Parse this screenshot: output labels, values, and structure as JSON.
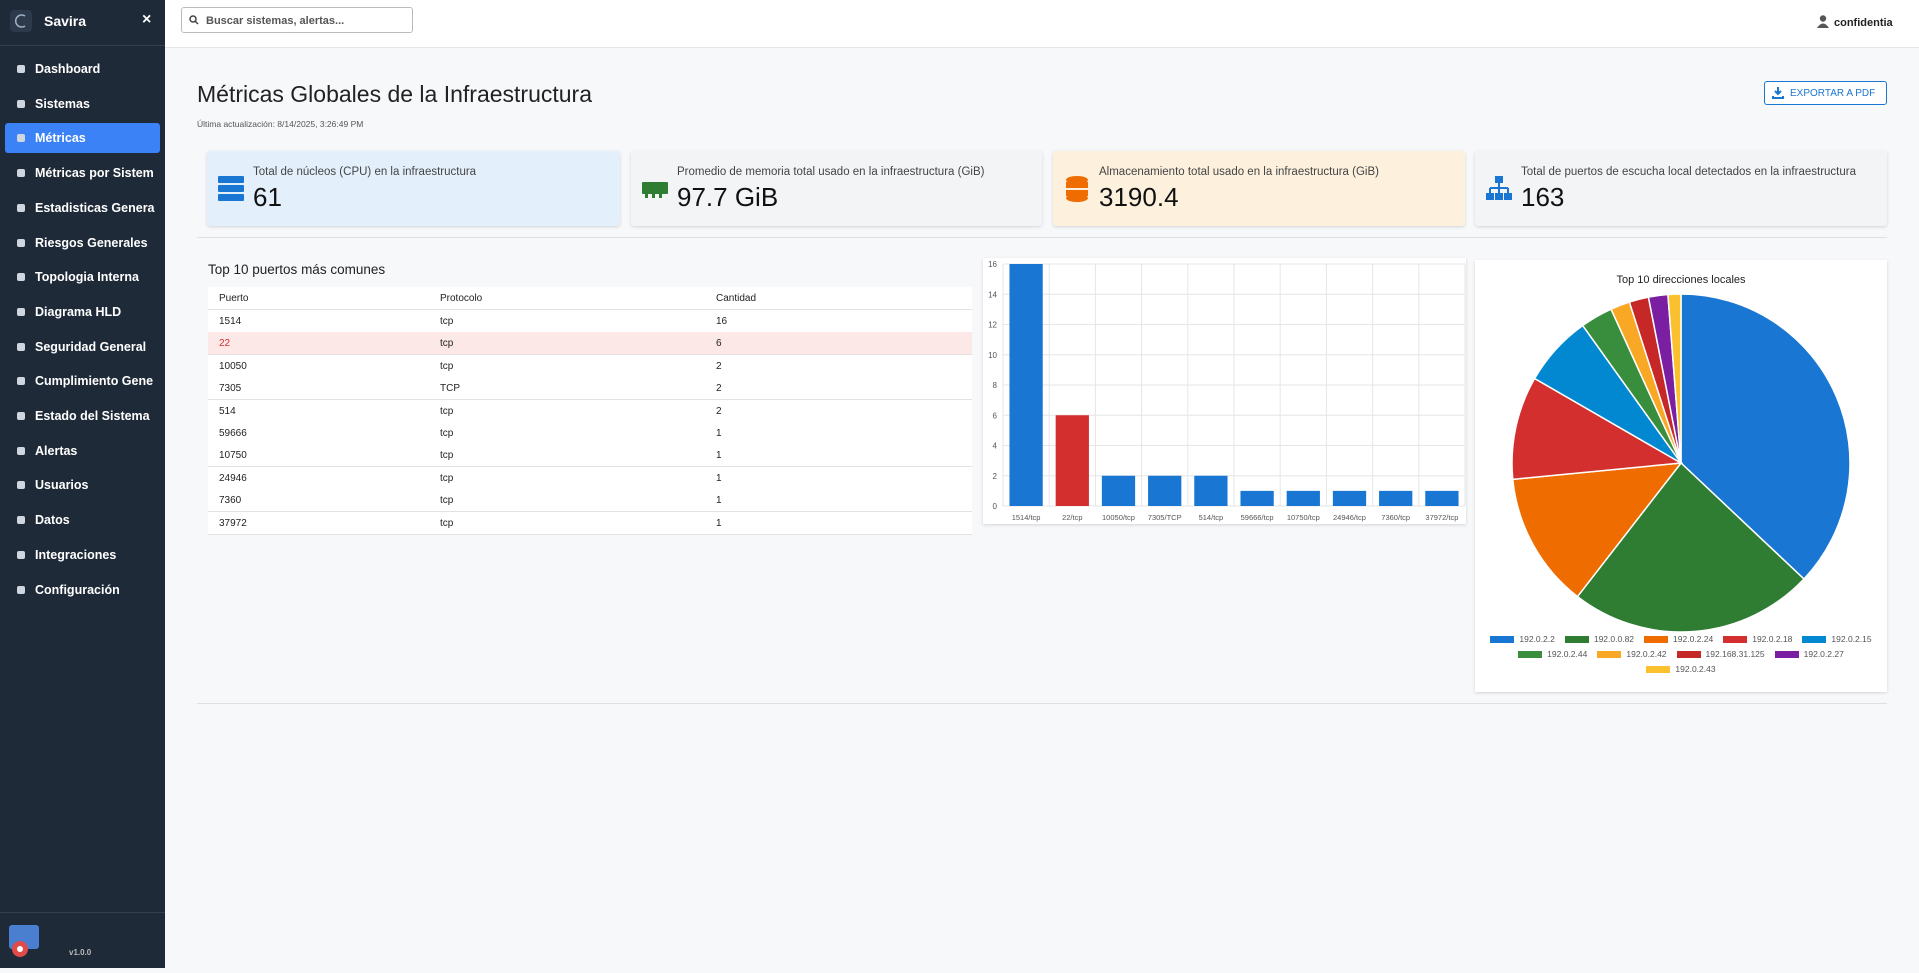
{
  "sidebar": {
    "brand": "Savira",
    "close": "×",
    "menu": [
      "Dashboard",
      "Sistemas",
      "Métricas",
      "Métricas por Sistem",
      "Estadisticas Genera",
      "Riesgos Generales",
      "Topologia Interna",
      "Diagrama HLD",
      "Seguridad General",
      "Cumplimiento Gene",
      "Estado del Sistema",
      "Alertas",
      "Usuarios",
      "Datos",
      "Integraciones",
      "Configuración"
    ],
    "active": 2,
    "version": "v1.0.0"
  },
  "header": {
    "search_placeholder": "Buscar sistemas, alertas...",
    "user": "confidentia"
  },
  "page": {
    "title": "Métricas Globales de la Infraestructura",
    "updated": "Última actualización: 8/14/2025, 3:26:49 PM",
    "export": "EXPORTAR A PDF"
  },
  "cards": [
    {
      "label": "Total de núcleos (CPU) en la infraestructura",
      "value": "61"
    },
    {
      "label": "Promedio de memoria total usado en la infraestructura (GiB)",
      "value": "97.7 GiB"
    },
    {
      "label": "Almacenamiento total usado en la infraestructura (GiB)",
      "value": "3190.4"
    },
    {
      "label": "Total de puertos de escucha local detectados en la infraestructura",
      "value": "163"
    }
  ],
  "table": {
    "title": "Top 10 puertos más comunes",
    "columns": [
      "Puerto",
      "Protocolo",
      "Cantidad"
    ],
    "rows": [
      [
        "1514",
        "tcp",
        16
      ],
      [
        "22",
        "tcp",
        6
      ],
      [
        "10050",
        "tcp",
        2
      ],
      [
        "7305",
        "TCP",
        2
      ],
      [
        "514",
        "tcp",
        2
      ],
      [
        "59666",
        "tcp",
        1
      ],
      [
        "10750",
        "tcp",
        1
      ],
      [
        "24946",
        "tcp",
        1
      ],
      [
        "7360",
        "tcp",
        1
      ],
      [
        "37972",
        "tcp",
        1
      ]
    ],
    "highlight_row": 1
  },
  "chart_data": [
    {
      "type": "bar",
      "categories": [
        "1514/tcp",
        "22/tcp",
        "10050/tcp",
        "7305/TCP",
        "514/tcp",
        "59666/tcp",
        "10750/tcp",
        "24946/tcp",
        "7360/tcp",
        "37972/tcp"
      ],
      "values": [
        16,
        6,
        2,
        2,
        2,
        1,
        1,
        1,
        1,
        1
      ],
      "colors": [
        "#1976d2",
        "#d32f2f",
        "#1976d2",
        "#1976d2",
        "#1976d2",
        "#1976d2",
        "#1976d2",
        "#1976d2",
        "#1976d2",
        "#1976d2"
      ],
      "ylim": [
        0,
        16
      ],
      "yticks": [
        0,
        2,
        4,
        6,
        8,
        10,
        12,
        14,
        16
      ],
      "grid": true
    },
    {
      "type": "pie",
      "title": "Top 10 direcciones locales",
      "categories": [
        "192.0.2.2",
        "192.0.0.82",
        "192.0.2.24",
        "192.0.2.18",
        "192.0.2.15",
        "192.0.2.44",
        "192.0.2.42",
        "192.168.31.125",
        "192.0.2.27",
        "192.0.2.43"
      ],
      "values": [
        60,
        38,
        21,
        16,
        11,
        5,
        3,
        3,
        3,
        2
      ],
      "colors": [
        "#1976d2",
        "#2e7d32",
        "#ef6c00",
        "#d32f2f",
        "#0288d1",
        "#388e3c",
        "#f9a825",
        "#c62828",
        "#7b1fa2",
        "#fbc02d"
      ]
    }
  ]
}
